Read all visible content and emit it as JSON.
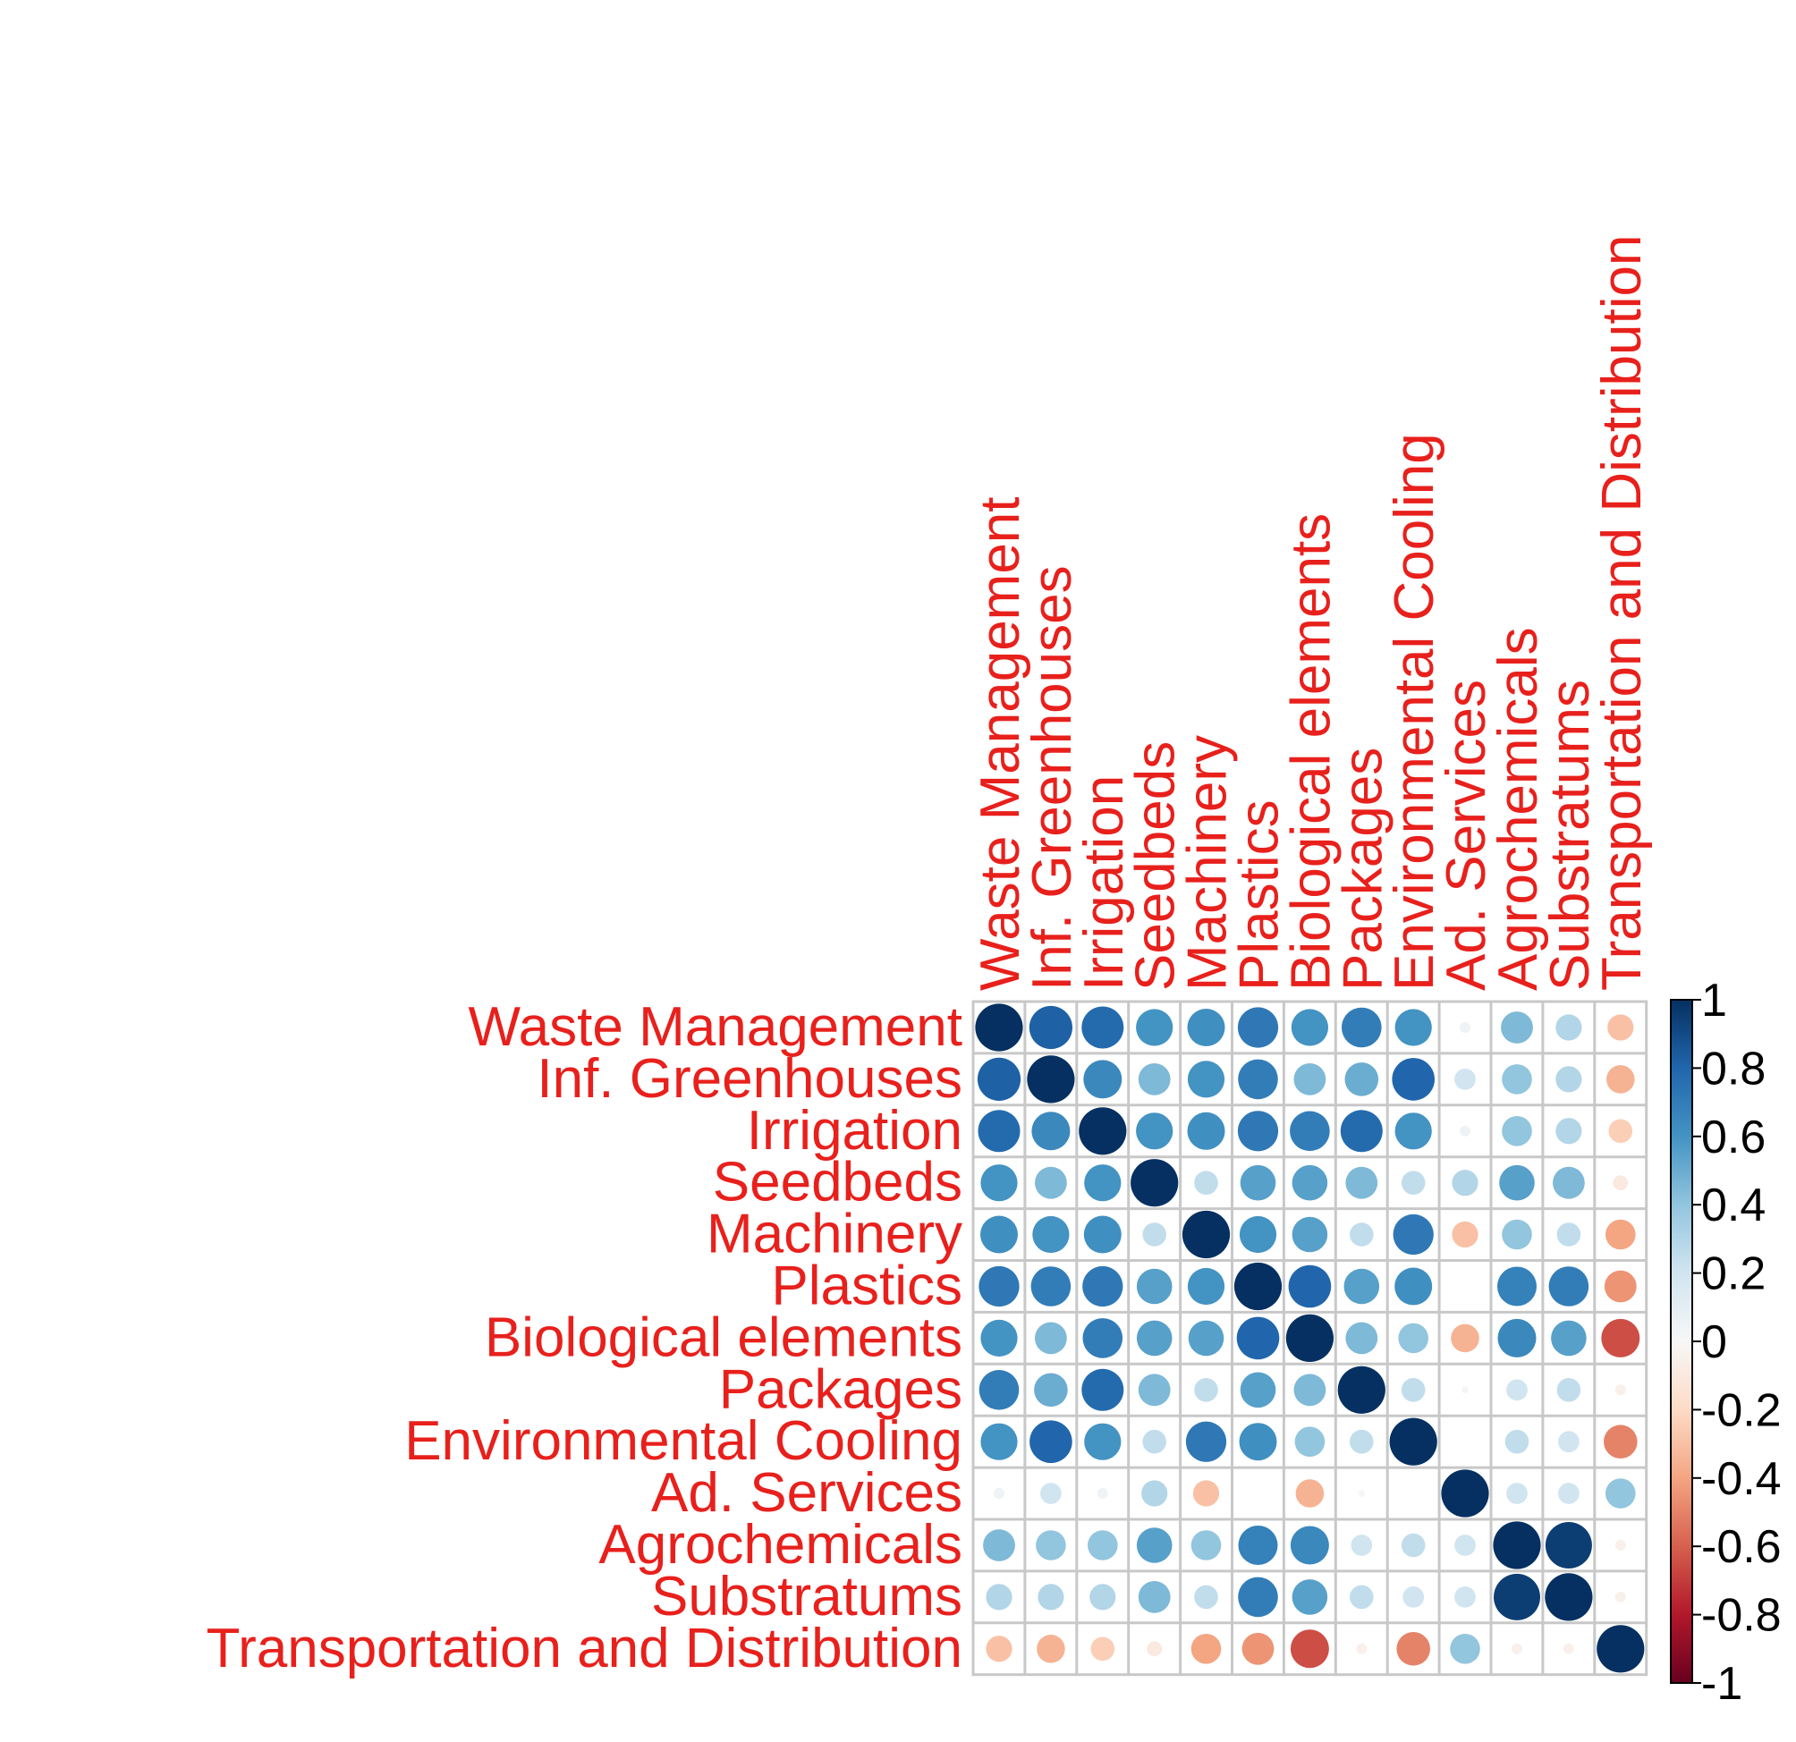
{
  "chart_data": {
    "type": "heatmap",
    "variables": [
      "Waste Management",
      "Inf. Greenhouses",
      "Irrigation",
      "Seedbeds",
      "Machinery",
      "Plastics",
      "Biological elements",
      "Packages",
      "Environmental Cooling",
      "Ad. Services",
      "Agrochemicals",
      "Substratums",
      "Transportation and Distribution"
    ],
    "matrix": [
      [
        1.0,
        0.82,
        0.78,
        0.6,
        0.62,
        0.72,
        0.6,
        0.7,
        0.6,
        0.05,
        0.45,
        0.3,
        -0.3
      ],
      [
        0.82,
        1.0,
        0.65,
        0.45,
        0.6,
        0.7,
        0.45,
        0.5,
        0.8,
        0.2,
        0.4,
        0.3,
        -0.35
      ],
      [
        0.78,
        0.65,
        1.0,
        0.6,
        0.62,
        0.72,
        0.7,
        0.78,
        0.6,
        0.05,
        0.4,
        0.3,
        -0.25
      ],
      [
        0.6,
        0.45,
        0.6,
        1.0,
        0.25,
        0.55,
        0.55,
        0.45,
        0.25,
        0.3,
        0.55,
        0.45,
        -0.1
      ],
      [
        0.62,
        0.6,
        0.62,
        0.25,
        1.0,
        0.6,
        0.55,
        0.25,
        0.72,
        -0.3,
        0.4,
        0.25,
        -0.4
      ],
      [
        0.72,
        0.7,
        0.72,
        0.55,
        0.6,
        1.0,
        0.8,
        0.55,
        0.62,
        0.0,
        0.68,
        0.7,
        -0.45
      ],
      [
        0.6,
        0.45,
        0.7,
        0.55,
        0.55,
        0.8,
        1.0,
        0.45,
        0.4,
        -0.35,
        0.65,
        0.55,
        -0.65
      ],
      [
        0.7,
        0.5,
        0.78,
        0.45,
        0.25,
        0.55,
        0.45,
        1.0,
        0.25,
        0.02,
        0.2,
        0.25,
        -0.05
      ],
      [
        0.6,
        0.8,
        0.6,
        0.25,
        0.72,
        0.62,
        0.4,
        0.25,
        1.0,
        0.0,
        0.25,
        0.2,
        -0.5
      ],
      [
        0.05,
        0.2,
        0.05,
        0.3,
        -0.3,
        0.0,
        -0.35,
        0.02,
        0.0,
        1.0,
        0.2,
        0.2,
        0.4
      ],
      [
        0.45,
        0.4,
        0.4,
        0.55,
        0.4,
        0.68,
        0.65,
        0.2,
        0.25,
        0.2,
        1.0,
        0.95,
        -0.05
      ],
      [
        0.3,
        0.3,
        0.3,
        0.45,
        0.25,
        0.7,
        0.55,
        0.25,
        0.2,
        0.2,
        0.95,
        1.0,
        -0.05
      ],
      [
        -0.3,
        -0.35,
        -0.25,
        -0.1,
        -0.4,
        -0.45,
        -0.65,
        -0.05,
        -0.5,
        0.4,
        -0.05,
        -0.05,
        1.0
      ]
    ],
    "legend": {
      "title": "",
      "ticks": [
        "1",
        "0.8",
        "0.6",
        "0.4",
        "0.2",
        "0",
        "-0.2",
        "-0.4",
        "-0.6",
        "-0.8",
        "-1"
      ],
      "range": [
        -1,
        1
      ],
      "placement": "right"
    },
    "colors": {
      "positive_strong": "#053061",
      "positive_mid": "#4393c3",
      "neutral": "#f7f7f7",
      "negative_mid": "#f4a582",
      "negative_strong": "#67001f",
      "label": "#e8201c"
    }
  }
}
